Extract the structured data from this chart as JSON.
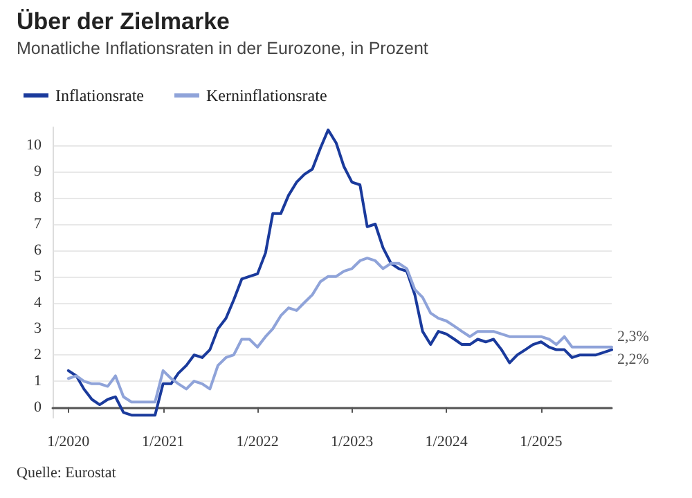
{
  "chart_data": {
    "type": "line",
    "title": "Über der Zielmarke",
    "subtitle": "Monatliche Inflationsraten in der Eurozone, in Prozent",
    "x": [
      "2020-01",
      "2020-02",
      "2020-03",
      "2020-04",
      "2020-05",
      "2020-06",
      "2020-07",
      "2020-08",
      "2020-09",
      "2020-10",
      "2020-11",
      "2020-12",
      "2021-01",
      "2021-02",
      "2021-03",
      "2021-04",
      "2021-05",
      "2021-06",
      "2021-07",
      "2021-08",
      "2021-09",
      "2021-10",
      "2021-11",
      "2021-12",
      "2022-01",
      "2022-02",
      "2022-03",
      "2022-04",
      "2022-05",
      "2022-06",
      "2022-07",
      "2022-08",
      "2022-09",
      "2022-10",
      "2022-11",
      "2022-12",
      "2023-01",
      "2023-02",
      "2023-03",
      "2023-04",
      "2023-05",
      "2023-06",
      "2023-07",
      "2023-08",
      "2023-09",
      "2023-10",
      "2023-11",
      "2023-12",
      "2024-01",
      "2024-02",
      "2024-03",
      "2024-04",
      "2024-05",
      "2024-06",
      "2024-07",
      "2024-08",
      "2024-09",
      "2024-10",
      "2024-11",
      "2024-12",
      "2025-01",
      "2025-02",
      "2025-03",
      "2025-04",
      "2025-05",
      "2025-06",
      "2025-07",
      "2025-08",
      "2025-09",
      "2025-10"
    ],
    "series": [
      {
        "name": "Inflationsrate",
        "color": "#1a3a9c",
        "values": [
          1.4,
          1.2,
          0.7,
          0.3,
          0.1,
          0.3,
          0.4,
          -0.2,
          -0.3,
          -0.3,
          -0.3,
          -0.3,
          0.9,
          0.9,
          1.3,
          1.6,
          2.0,
          1.9,
          2.2,
          3.0,
          3.4,
          4.1,
          4.9,
          5.0,
          5.1,
          5.9,
          7.4,
          7.4,
          8.1,
          8.6,
          8.9,
          9.1,
          9.9,
          10.6,
          10.1,
          9.2,
          8.6,
          8.5,
          6.9,
          7.0,
          6.1,
          5.5,
          5.3,
          5.2,
          4.3,
          2.9,
          2.4,
          2.9,
          2.8,
          2.6,
          2.4,
          2.4,
          2.6,
          2.5,
          2.6,
          2.2,
          1.7,
          2.0,
          2.2,
          2.4,
          2.5,
          2.3,
          2.2,
          2.2,
          1.9,
          2.0,
          2.0,
          2.0,
          2.1,
          2.2
        ],
        "value_labels": [
          null,
          null,
          null,
          null,
          null,
          null,
          null,
          null,
          null,
          null,
          null,
          null,
          null,
          null,
          null,
          null,
          null,
          null,
          null,
          null,
          null,
          null,
          null,
          null,
          null,
          null,
          null,
          null,
          null,
          null,
          null,
          null,
          null,
          null,
          null,
          null,
          null,
          null,
          null,
          null,
          null,
          null,
          null,
          null,
          null,
          null,
          null,
          null,
          null,
          null,
          null,
          null,
          null,
          null,
          null,
          null,
          null,
          null,
          null,
          null,
          null,
          null,
          null,
          null,
          null,
          null,
          null,
          null,
          null,
          "2,2%"
        ]
      },
      {
        "name": "Kerninflationsrate",
        "color": "#8fa3d9",
        "values": [
          1.1,
          1.2,
          1.0,
          0.9,
          0.9,
          0.8,
          1.2,
          0.4,
          0.2,
          0.2,
          0.2,
          0.2,
          1.4,
          1.1,
          0.9,
          0.7,
          1.0,
          0.9,
          0.7,
          1.6,
          1.9,
          2.0,
          2.6,
          2.6,
          2.3,
          2.7,
          3.0,
          3.5,
          3.8,
          3.7,
          4.0,
          4.3,
          4.8,
          5.0,
          5.0,
          5.2,
          5.3,
          5.6,
          5.7,
          5.6,
          5.3,
          5.5,
          5.5,
          5.3,
          4.5,
          4.2,
          3.6,
          3.4,
          3.3,
          3.1,
          2.9,
          2.7,
          2.9,
          2.9,
          2.9,
          2.8,
          2.7,
          2.7,
          2.7,
          2.7,
          2.7,
          2.6,
          2.4,
          2.7,
          2.3,
          2.3,
          2.3,
          2.3,
          2.3,
          2.3
        ],
        "value_labels": [
          null,
          null,
          null,
          null,
          null,
          null,
          null,
          null,
          null,
          null,
          null,
          null,
          null,
          null,
          null,
          null,
          null,
          null,
          null,
          null,
          null,
          null,
          null,
          null,
          null,
          null,
          null,
          null,
          null,
          null,
          null,
          null,
          null,
          null,
          null,
          null,
          null,
          null,
          null,
          null,
          null,
          null,
          null,
          null,
          null,
          null,
          null,
          null,
          null,
          null,
          null,
          null,
          null,
          null,
          null,
          null,
          null,
          null,
          null,
          null,
          null,
          null,
          null,
          null,
          null,
          null,
          null,
          null,
          null,
          "2,3%"
        ]
      }
    ],
    "xlim": [
      "2019-11",
      "2025-10"
    ],
    "xticks": [
      {
        "value": "2020-01",
        "label": "1/2020"
      },
      {
        "value": "2021-01",
        "label": "1/2021"
      },
      {
        "value": "2022-01",
        "label": "1/2022"
      },
      {
        "value": "2023-01",
        "label": "1/2023"
      },
      {
        "value": "2024-01",
        "label": "1/2024"
      },
      {
        "value": "2025-01",
        "label": "1/2025"
      }
    ],
    "ylim": [
      -0.4,
      10.7
    ],
    "yticks": [
      0,
      1,
      2,
      3,
      4,
      5,
      6,
      7,
      8,
      9,
      10
    ],
    "grid": "y",
    "legend": "top left",
    "marker": "none",
    "line_style": "solid",
    "annotations": [
      "Quelle: Eurostat"
    ]
  }
}
